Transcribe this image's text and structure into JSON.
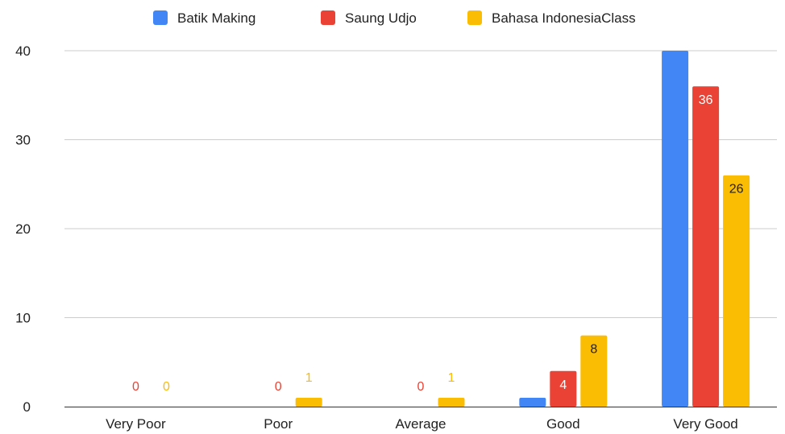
{
  "chart_data": {
    "type": "bar",
    "categories": [
      "Very Poor",
      "Poor",
      "Average",
      "Good",
      "Very Good"
    ],
    "series": [
      {
        "name": "Batik Making",
        "color": "#4285f4",
        "values": [
          0,
          0,
          0,
          1,
          40
        ],
        "labels": [
          "",
          "",
          "",
          "",
          ""
        ]
      },
      {
        "name": "Saung Udjo",
        "color": "#ea4335",
        "values": [
          0,
          0,
          0,
          4,
          36
        ],
        "labels": [
          "0",
          "0",
          "0",
          "4",
          "36"
        ]
      },
      {
        "name": "Bahasa IndonesiaClass",
        "color": "#fbbc04",
        "values": [
          0,
          1,
          1,
          8,
          26
        ],
        "labels": [
          "0",
          "1",
          "1",
          "8",
          "26"
        ]
      }
    ],
    "yticks": [
      0,
      10,
      20,
      30,
      40
    ],
    "ylim": [
      0,
      40
    ],
    "grid": true,
    "legend_position": "top"
  }
}
